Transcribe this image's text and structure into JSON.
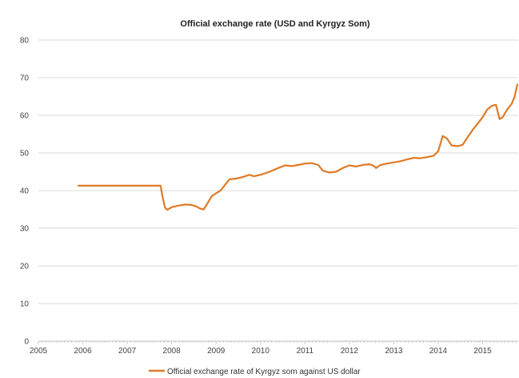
{
  "chart_data": {
    "type": "line",
    "title": "Official exchange rate (USD and Kyrgyz Som)",
    "xlabel": "",
    "ylabel": "",
    "x_ticks": [
      "2005",
      "2006",
      "2007",
      "2008",
      "2009",
      "2010",
      "2011",
      "2012",
      "2013",
      "2014",
      "2015"
    ],
    "y_ticks": [
      "0",
      "10",
      "20",
      "30",
      "40",
      "50",
      "60",
      "70",
      "80"
    ],
    "xlim": [
      2005,
      2015.8
    ],
    "ylim": [
      0,
      80
    ],
    "grid": "horizontal",
    "legend_position": "bottom",
    "series": [
      {
        "name": "Official exchange rate of Kyrgyz som against US dollar",
        "color": "#e07a27",
        "points": [
          [
            2005.9,
            41.3
          ],
          [
            2006.5,
            41.3
          ],
          [
            2007.0,
            41.3
          ],
          [
            2007.5,
            41.3
          ],
          [
            2007.75,
            41.3
          ],
          [
            2007.8,
            38.0
          ],
          [
            2007.85,
            35.5
          ],
          [
            2007.9,
            34.9
          ],
          [
            2008.0,
            35.6
          ],
          [
            2008.15,
            36.0
          ],
          [
            2008.3,
            36.3
          ],
          [
            2008.45,
            36.2
          ],
          [
            2008.55,
            35.8
          ],
          [
            2008.65,
            35.2
          ],
          [
            2008.72,
            35.0
          ],
          [
            2008.8,
            36.5
          ],
          [
            2008.9,
            38.5
          ],
          [
            2009.0,
            39.3
          ],
          [
            2009.1,
            40.0
          ],
          [
            2009.2,
            41.5
          ],
          [
            2009.3,
            43.0
          ],
          [
            2009.45,
            43.2
          ],
          [
            2009.6,
            43.6
          ],
          [
            2009.75,
            44.2
          ],
          [
            2009.85,
            43.8
          ],
          [
            2010.0,
            44.2
          ],
          [
            2010.2,
            45.0
          ],
          [
            2010.4,
            46.0
          ],
          [
            2010.55,
            46.7
          ],
          [
            2010.7,
            46.5
          ],
          [
            2010.85,
            46.8
          ],
          [
            2011.0,
            47.2
          ],
          [
            2011.15,
            47.3
          ],
          [
            2011.3,
            46.8
          ],
          [
            2011.4,
            45.3
          ],
          [
            2011.55,
            44.8
          ],
          [
            2011.7,
            45.0
          ],
          [
            2011.85,
            46.0
          ],
          [
            2012.0,
            46.7
          ],
          [
            2012.15,
            46.4
          ],
          [
            2012.3,
            46.8
          ],
          [
            2012.45,
            47.0
          ],
          [
            2012.55,
            46.6
          ],
          [
            2012.6,
            46.0
          ],
          [
            2012.7,
            46.8
          ],
          [
            2012.85,
            47.2
          ],
          [
            2013.0,
            47.5
          ],
          [
            2013.15,
            47.8
          ],
          [
            2013.3,
            48.3
          ],
          [
            2013.45,
            48.7
          ],
          [
            2013.6,
            48.6
          ],
          [
            2013.75,
            48.9
          ],
          [
            2013.9,
            49.3
          ],
          [
            2014.0,
            50.5
          ],
          [
            2014.1,
            54.5
          ],
          [
            2014.2,
            53.8
          ],
          [
            2014.3,
            52.0
          ],
          [
            2014.45,
            51.8
          ],
          [
            2014.55,
            52.2
          ],
          [
            2014.65,
            54.0
          ],
          [
            2014.8,
            56.5
          ],
          [
            2014.9,
            58.0
          ],
          [
            2015.0,
            59.5
          ],
          [
            2015.1,
            61.5
          ],
          [
            2015.2,
            62.5
          ],
          [
            2015.3,
            62.8
          ],
          [
            2015.38,
            59.0
          ],
          [
            2015.45,
            59.5
          ],
          [
            2015.55,
            61.5
          ],
          [
            2015.65,
            63.0
          ],
          [
            2015.72,
            65.0
          ],
          [
            2015.78,
            68.2
          ]
        ]
      }
    ]
  }
}
